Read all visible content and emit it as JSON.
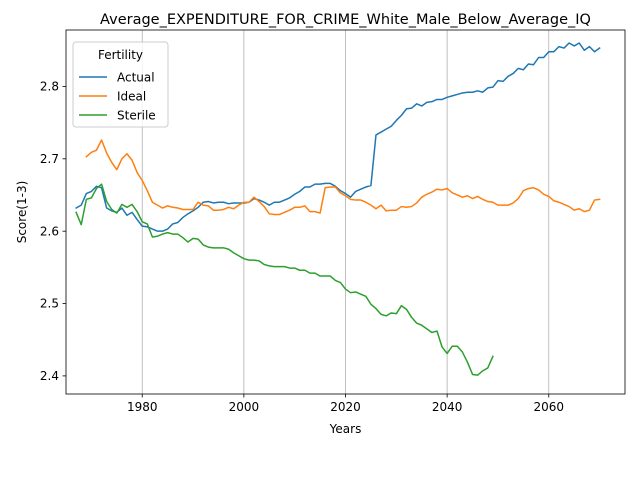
{
  "chart_data": {
    "type": "line",
    "title": "Average_EXPENDITURE_FOR_CRIME_White_Male_Below_Average_IQ",
    "xlabel": "Years",
    "ylabel": "Score(1-3)",
    "xlim": [
      1965,
      2075
    ],
    "ylim": [
      2.375,
      2.878
    ],
    "xticks": [
      1980,
      2000,
      2020,
      2040,
      2060
    ],
    "yticks": [
      2.4,
      2.5,
      2.6,
      2.7,
      2.8
    ],
    "grid": "x-only",
    "legend": {
      "title": "Fertility",
      "placement": "top-left"
    },
    "series": [
      {
        "name": "Actual",
        "color": "#1f77b4",
        "points": [
          [
            1967,
            2.632
          ],
          [
            1968,
            2.636
          ],
          [
            1969,
            2.652
          ],
          [
            1970,
            2.655
          ],
          [
            1971,
            2.662
          ],
          [
            1972,
            2.66
          ],
          [
            1973,
            2.632
          ],
          [
            1974,
            2.628
          ],
          [
            1975,
            2.626
          ],
          [
            1976,
            2.632
          ],
          [
            1977,
            2.622
          ],
          [
            1978,
            2.626
          ],
          [
            1979,
            2.616
          ],
          [
            1980,
            2.607
          ],
          [
            1981,
            2.606
          ],
          [
            1982,
            2.603
          ],
          [
            1983,
            2.6
          ],
          [
            1984,
            2.6
          ],
          [
            1985,
            2.603
          ],
          [
            1986,
            2.61
          ],
          [
            1987,
            2.612
          ],
          [
            1988,
            2.619
          ],
          [
            1989,
            2.624
          ],
          [
            1990,
            2.628
          ],
          [
            1991,
            2.633
          ],
          [
            1992,
            2.64
          ],
          [
            1993,
            2.641
          ],
          [
            1994,
            2.639
          ],
          [
            1995,
            2.64
          ],
          [
            1996,
            2.64
          ],
          [
            1997,
            2.638
          ],
          [
            1998,
            2.639
          ],
          [
            1999,
            2.639
          ],
          [
            2000,
            2.639
          ],
          [
            2001,
            2.64
          ],
          [
            2002,
            2.645
          ],
          [
            2003,
            2.643
          ],
          [
            2004,
            2.64
          ],
          [
            2005,
            2.636
          ],
          [
            2006,
            2.64
          ],
          [
            2007,
            2.64
          ],
          [
            2008,
            2.643
          ],
          [
            2009,
            2.646
          ],
          [
            2010,
            2.651
          ],
          [
            2011,
            2.655
          ],
          [
            2012,
            2.661
          ],
          [
            2013,
            2.661
          ],
          [
            2014,
            2.665
          ],
          [
            2015,
            2.665
          ],
          [
            2016,
            2.666
          ],
          [
            2017,
            2.666
          ],
          [
            2018,
            2.662
          ],
          [
            2019,
            2.656
          ],
          [
            2020,
            2.652
          ],
          [
            2021,
            2.647
          ],
          [
            2022,
            2.655
          ],
          [
            2023,
            2.658
          ],
          [
            2024,
            2.661
          ],
          [
            2025,
            2.663
          ],
          [
            2026,
            2.733
          ],
          [
            2027,
            2.737
          ],
          [
            2028,
            2.741
          ],
          [
            2029,
            2.745
          ],
          [
            2030,
            2.753
          ],
          [
            2031,
            2.76
          ],
          [
            2032,
            2.769
          ],
          [
            2033,
            2.77
          ],
          [
            2034,
            2.776
          ],
          [
            2035,
            2.773
          ],
          [
            2036,
            2.778
          ],
          [
            2037,
            2.779
          ],
          [
            2038,
            2.782
          ],
          [
            2039,
            2.782
          ],
          [
            2040,
            2.785
          ],
          [
            2041,
            2.787
          ],
          [
            2042,
            2.789
          ],
          [
            2043,
            2.791
          ],
          [
            2044,
            2.792
          ],
          [
            2045,
            2.792
          ],
          [
            2046,
            2.794
          ],
          [
            2047,
            2.792
          ],
          [
            2048,
            2.798
          ],
          [
            2049,
            2.799
          ],
          [
            2050,
            2.808
          ],
          [
            2051,
            2.807
          ],
          [
            2052,
            2.814
          ],
          [
            2053,
            2.818
          ],
          [
            2054,
            2.825
          ],
          [
            2055,
            2.823
          ],
          [
            2056,
            2.831
          ],
          [
            2057,
            2.83
          ],
          [
            2058,
            2.84
          ],
          [
            2059,
            2.84
          ],
          [
            2060,
            2.848
          ],
          [
            2061,
            2.848
          ],
          [
            2062,
            2.855
          ],
          [
            2063,
            2.853
          ],
          [
            2064,
            2.86
          ],
          [
            2065,
            2.856
          ],
          [
            2066,
            2.86
          ],
          [
            2067,
            2.85
          ],
          [
            2068,
            2.855
          ],
          [
            2069,
            2.848
          ],
          [
            2070,
            2.853
          ]
        ]
      },
      {
        "name": "Ideal",
        "color": "#ff7f0e",
        "points": [
          [
            1969,
            2.703
          ],
          [
            1970,
            2.709
          ],
          [
            1971,
            2.712
          ],
          [
            1972,
            2.726
          ],
          [
            1973,
            2.708
          ],
          [
            1974,
            2.695
          ],
          [
            1975,
            2.685
          ],
          [
            1976,
            2.7
          ],
          [
            1977,
            2.707
          ],
          [
            1978,
            2.698
          ],
          [
            1979,
            2.681
          ],
          [
            1980,
            2.67
          ],
          [
            1981,
            2.656
          ],
          [
            1982,
            2.64
          ],
          [
            1983,
            2.636
          ],
          [
            1984,
            2.632
          ],
          [
            1985,
            2.635
          ],
          [
            1986,
            2.633
          ],
          [
            1987,
            2.632
          ],
          [
            1988,
            2.63
          ],
          [
            1989,
            2.63
          ],
          [
            1990,
            2.63
          ],
          [
            1991,
            2.64
          ],
          [
            1992,
            2.636
          ],
          [
            1993,
            2.635
          ],
          [
            1994,
            2.629
          ],
          [
            1995,
            2.629
          ],
          [
            1996,
            2.63
          ],
          [
            1997,
            2.633
          ],
          [
            1998,
            2.631
          ],
          [
            1999,
            2.636
          ],
          [
            2000,
            2.64
          ],
          [
            2001,
            2.64
          ],
          [
            2002,
            2.647
          ],
          [
            2003,
            2.641
          ],
          [
            2004,
            2.634
          ],
          [
            2005,
            2.624
          ],
          [
            2006,
            2.623
          ],
          [
            2007,
            2.623
          ],
          [
            2008,
            2.626
          ],
          [
            2009,
            2.629
          ],
          [
            2010,
            2.633
          ],
          [
            2011,
            2.633
          ],
          [
            2012,
            2.635
          ],
          [
            2013,
            2.627
          ],
          [
            2014,
            2.627
          ],
          [
            2015,
            2.625
          ],
          [
            2016,
            2.66
          ],
          [
            2017,
            2.661
          ],
          [
            2018,
            2.661
          ],
          [
            2019,
            2.653
          ],
          [
            2020,
            2.649
          ],
          [
            2021,
            2.644
          ],
          [
            2022,
            2.643
          ],
          [
            2023,
            2.643
          ],
          [
            2024,
            2.64
          ],
          [
            2025,
            2.636
          ],
          [
            2026,
            2.631
          ],
          [
            2027,
            2.636
          ],
          [
            2028,
            2.628
          ],
          [
            2029,
            2.629
          ],
          [
            2030,
            2.629
          ],
          [
            2031,
            2.634
          ],
          [
            2032,
            2.633
          ],
          [
            2033,
            2.634
          ],
          [
            2034,
            2.639
          ],
          [
            2035,
            2.647
          ],
          [
            2036,
            2.651
          ],
          [
            2037,
            2.654
          ],
          [
            2038,
            2.658
          ],
          [
            2039,
            2.657
          ],
          [
            2040,
            2.659
          ],
          [
            2041,
            2.653
          ],
          [
            2042,
            2.65
          ],
          [
            2043,
            2.647
          ],
          [
            2044,
            2.649
          ],
          [
            2045,
            2.645
          ],
          [
            2046,
            2.648
          ],
          [
            2047,
            2.644
          ],
          [
            2048,
            2.641
          ],
          [
            2049,
            2.64
          ],
          [
            2050,
            2.636
          ],
          [
            2051,
            2.636
          ],
          [
            2052,
            2.636
          ],
          [
            2053,
            2.639
          ],
          [
            2054,
            2.645
          ],
          [
            2055,
            2.656
          ],
          [
            2056,
            2.659
          ],
          [
            2057,
            2.66
          ],
          [
            2058,
            2.657
          ],
          [
            2059,
            2.651
          ],
          [
            2060,
            2.648
          ],
          [
            2061,
            2.642
          ],
          [
            2062,
            2.64
          ],
          [
            2063,
            2.637
          ],
          [
            2064,
            2.634
          ],
          [
            2065,
            2.629
          ],
          [
            2066,
            2.631
          ],
          [
            2067,
            2.627
          ],
          [
            2068,
            2.629
          ],
          [
            2069,
            2.643
          ],
          [
            2070,
            2.644
          ]
        ]
      },
      {
        "name": "Sterile",
        "color": "#2ca02c",
        "points": [
          [
            1967,
            2.626
          ],
          [
            1968,
            2.609
          ],
          [
            1969,
            2.644
          ],
          [
            1970,
            2.646
          ],
          [
            1971,
            2.659
          ],
          [
            1972,
            2.665
          ],
          [
            1973,
            2.641
          ],
          [
            1974,
            2.63
          ],
          [
            1975,
            2.625
          ],
          [
            1976,
            2.637
          ],
          [
            1977,
            2.633
          ],
          [
            1978,
            2.637
          ],
          [
            1979,
            2.627
          ],
          [
            1980,
            2.613
          ],
          [
            1981,
            2.61
          ],
          [
            1982,
            2.592
          ],
          [
            1983,
            2.593
          ],
          [
            1984,
            2.596
          ],
          [
            1985,
            2.598
          ],
          [
            1986,
            2.596
          ],
          [
            1987,
            2.596
          ],
          [
            1988,
            2.591
          ],
          [
            1989,
            2.585
          ],
          [
            1990,
            2.59
          ],
          [
            1991,
            2.589
          ],
          [
            1992,
            2.581
          ],
          [
            1993,
            2.578
          ],
          [
            1994,
            2.577
          ],
          [
            1995,
            2.577
          ],
          [
            1996,
            2.577
          ],
          [
            1997,
            2.575
          ],
          [
            1998,
            2.57
          ],
          [
            1999,
            2.566
          ],
          [
            2000,
            2.562
          ],
          [
            2001,
            2.56
          ],
          [
            2002,
            2.56
          ],
          [
            2003,
            2.559
          ],
          [
            2004,
            2.554
          ],
          [
            2005,
            2.552
          ],
          [
            2006,
            2.551
          ],
          [
            2007,
            2.551
          ],
          [
            2008,
            2.551
          ],
          [
            2009,
            2.549
          ],
          [
            2010,
            2.549
          ],
          [
            2011,
            2.546
          ],
          [
            2012,
            2.546
          ],
          [
            2013,
            2.542
          ],
          [
            2014,
            2.542
          ],
          [
            2015,
            2.538
          ],
          [
            2016,
            2.538
          ],
          [
            2017,
            2.538
          ],
          [
            2018,
            2.532
          ],
          [
            2019,
            2.529
          ],
          [
            2020,
            2.52
          ],
          [
            2021,
            2.515
          ],
          [
            2022,
            2.516
          ],
          [
            2023,
            2.513
          ],
          [
            2024,
            2.51
          ],
          [
            2025,
            2.499
          ],
          [
            2026,
            2.493
          ],
          [
            2027,
            2.485
          ],
          [
            2028,
            2.483
          ],
          [
            2029,
            2.487
          ],
          [
            2030,
            2.486
          ],
          [
            2031,
            2.497
          ],
          [
            2032,
            2.492
          ],
          [
            2033,
            2.481
          ],
          [
            2034,
            2.473
          ],
          [
            2035,
            2.47
          ],
          [
            2036,
            2.465
          ],
          [
            2037,
            2.46
          ],
          [
            2038,
            2.462
          ],
          [
            2039,
            2.44
          ],
          [
            2040,
            2.431
          ],
          [
            2041,
            2.441
          ],
          [
            2042,
            2.441
          ],
          [
            2043,
            2.433
          ],
          [
            2044,
            2.419
          ],
          [
            2045,
            2.402
          ],
          [
            2046,
            2.401
          ],
          [
            2047,
            2.407
          ],
          [
            2048,
            2.411
          ],
          [
            2049,
            2.427
          ]
        ]
      }
    ]
  }
}
